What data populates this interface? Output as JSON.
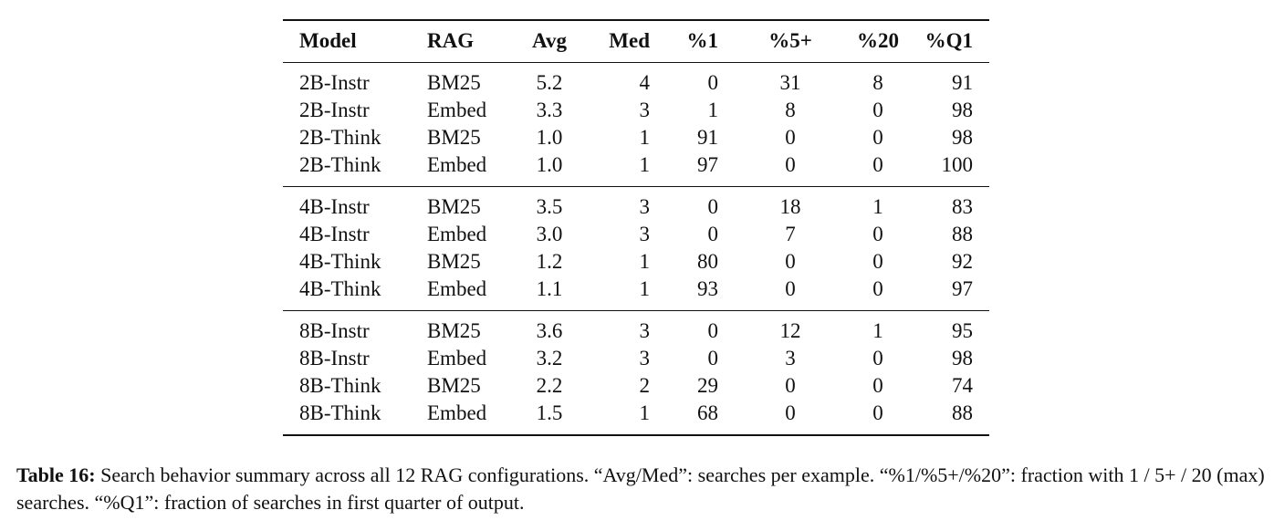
{
  "table": {
    "columns": [
      "Model",
      "RAG",
      "Avg",
      "Med",
      "%1",
      "%5+",
      "%20",
      "%Q1"
    ],
    "groups": [
      [
        [
          "2B-Instr",
          "BM25",
          "5.2",
          "4",
          "0",
          "31",
          "8",
          "91"
        ],
        [
          "2B-Instr",
          "Embed",
          "3.3",
          "3",
          "1",
          "8",
          "0",
          "98"
        ],
        [
          "2B-Think",
          "BM25",
          "1.0",
          "1",
          "91",
          "0",
          "0",
          "98"
        ],
        [
          "2B-Think",
          "Embed",
          "1.0",
          "1",
          "97",
          "0",
          "0",
          "100"
        ]
      ],
      [
        [
          "4B-Instr",
          "BM25",
          "3.5",
          "3",
          "0",
          "18",
          "1",
          "83"
        ],
        [
          "4B-Instr",
          "Embed",
          "3.0",
          "3",
          "0",
          "7",
          "0",
          "88"
        ],
        [
          "4B-Think",
          "BM25",
          "1.2",
          "1",
          "80",
          "0",
          "0",
          "92"
        ],
        [
          "4B-Think",
          "Embed",
          "1.1",
          "1",
          "93",
          "0",
          "0",
          "97"
        ]
      ],
      [
        [
          "8B-Instr",
          "BM25",
          "3.6",
          "3",
          "0",
          "12",
          "1",
          "95"
        ],
        [
          "8B-Instr",
          "Embed",
          "3.2",
          "3",
          "0",
          "3",
          "0",
          "98"
        ],
        [
          "8B-Think",
          "BM25",
          "2.2",
          "2",
          "29",
          "0",
          "0",
          "74"
        ],
        [
          "8B-Think",
          "Embed",
          "1.5",
          "1",
          "68",
          "0",
          "0",
          "88"
        ]
      ]
    ]
  },
  "caption": {
    "label": "Table 16:",
    "text": "Search behavior summary across all 12 RAG configurations. “Avg/Med”: searches per example. “%1/%5+/%20”: fraction with 1 / 5+ / 20 (max) searches. “%Q1”: fraction of searches in first quarter of output."
  }
}
